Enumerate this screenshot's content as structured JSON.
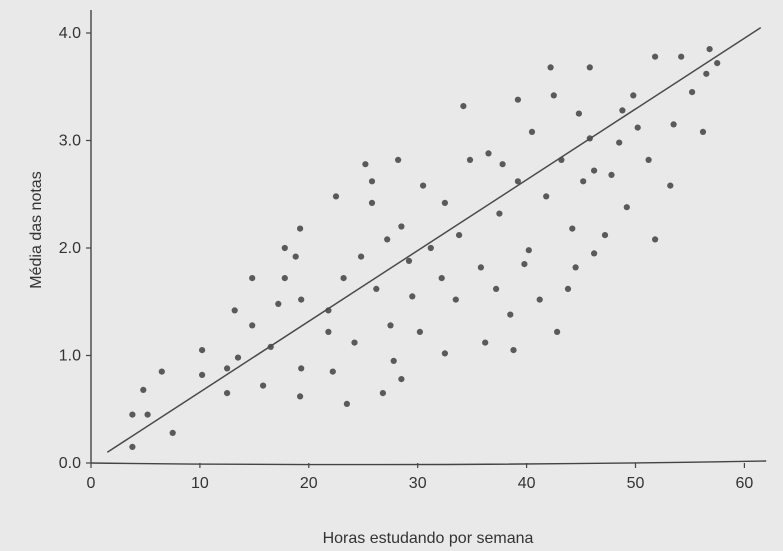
{
  "chart_data": {
    "type": "scatter",
    "xlabel": "Horas estudando por semana",
    "ylabel": "Média das notas",
    "xlim": [
      0,
      62
    ],
    "ylim": [
      0,
      4.25
    ],
    "xticks": [
      "0",
      "10",
      "20",
      "30",
      "40",
      "50",
      "60"
    ],
    "yticks": [
      "0.0",
      "1.0",
      "2.0",
      "3.0",
      "4.0"
    ],
    "grid": false,
    "colors": {
      "points": "#5a5a5a",
      "line": "#4a4a4a",
      "axis": "#444444",
      "background": "#e9e9e9"
    },
    "points": [
      [
        3.8,
        0.15
      ],
      [
        3.8,
        0.45
      ],
      [
        4.8,
        0.68
      ],
      [
        5.2,
        0.45
      ],
      [
        6.5,
        0.85
      ],
      [
        7.5,
        0.28
      ],
      [
        10.2,
        1.05
      ],
      [
        10.2,
        0.82
      ],
      [
        12.5,
        0.88
      ],
      [
        12.5,
        0.65
      ],
      [
        13.2,
        1.42
      ],
      [
        13.5,
        0.98
      ],
      [
        14.8,
        1.72
      ],
      [
        14.8,
        1.28
      ],
      [
        15.8,
        0.72
      ],
      [
        16.5,
        1.08
      ],
      [
        17.2,
        1.48
      ],
      [
        17.8,
        2.0
      ],
      [
        17.8,
        1.72
      ],
      [
        18.8,
        1.92
      ],
      [
        19.2,
        2.18
      ],
      [
        19.3,
        1.52
      ],
      [
        19.3,
        0.88
      ],
      [
        19.2,
        0.62
      ],
      [
        21.8,
        1.42
      ],
      [
        21.8,
        1.22
      ],
      [
        22.2,
        0.85
      ],
      [
        22.5,
        2.48
      ],
      [
        23.2,
        1.72
      ],
      [
        23.5,
        0.55
      ],
      [
        24.2,
        1.12
      ],
      [
        24.8,
        1.92
      ],
      [
        25.2,
        2.78
      ],
      [
        25.8,
        2.62
      ],
      [
        25.8,
        2.42
      ],
      [
        26.8,
        0.65
      ],
      [
        26.2,
        1.62
      ],
      [
        27.2,
        2.08
      ],
      [
        27.5,
        1.28
      ],
      [
        27.8,
        0.95
      ],
      [
        28.5,
        0.78
      ],
      [
        28.2,
        2.82
      ],
      [
        28.5,
        2.2
      ],
      [
        29.2,
        1.88
      ],
      [
        29.5,
        1.55
      ],
      [
        30.2,
        1.22
      ],
      [
        30.5,
        2.58
      ],
      [
        31.2,
        2.0
      ],
      [
        32.2,
        1.72
      ],
      [
        32.5,
        1.02
      ],
      [
        32.5,
        2.42
      ],
      [
        33.5,
        1.52
      ],
      [
        33.8,
        2.12
      ],
      [
        34.2,
        3.32
      ],
      [
        34.8,
        2.82
      ],
      [
        35.8,
        1.82
      ],
      [
        36.2,
        1.12
      ],
      [
        36.5,
        2.88
      ],
      [
        37.2,
        1.62
      ],
      [
        37.5,
        2.32
      ],
      [
        37.8,
        2.78
      ],
      [
        38.5,
        1.38
      ],
      [
        38.8,
        1.05
      ],
      [
        39.2,
        2.62
      ],
      [
        39.2,
        3.38
      ],
      [
        39.8,
        1.85
      ],
      [
        40.2,
        1.98
      ],
      [
        40.5,
        3.08
      ],
      [
        41.2,
        1.52
      ],
      [
        41.8,
        2.48
      ],
      [
        42.2,
        3.68
      ],
      [
        42.5,
        3.42
      ],
      [
        42.8,
        1.22
      ],
      [
        43.2,
        2.82
      ],
      [
        43.8,
        1.62
      ],
      [
        44.2,
        2.18
      ],
      [
        44.5,
        1.82
      ],
      [
        44.8,
        3.25
      ],
      [
        45.2,
        2.62
      ],
      [
        45.8,
        3.02
      ],
      [
        45.8,
        3.68
      ],
      [
        46.2,
        1.95
      ],
      [
        46.2,
        2.72
      ],
      [
        47.2,
        2.12
      ],
      [
        47.8,
        2.68
      ],
      [
        48.5,
        2.98
      ],
      [
        48.8,
        3.28
      ],
      [
        49.2,
        2.38
      ],
      [
        49.8,
        3.42
      ],
      [
        50.2,
        3.12
      ],
      [
        51.2,
        2.82
      ],
      [
        51.8,
        3.78
      ],
      [
        51.8,
        2.08
      ],
      [
        53.2,
        2.58
      ],
      [
        53.5,
        3.15
      ],
      [
        54.2,
        3.78
      ],
      [
        55.2,
        3.45
      ],
      [
        56.2,
        3.08
      ],
      [
        56.5,
        3.62
      ],
      [
        56.8,
        3.85
      ],
      [
        57.5,
        3.72
      ]
    ],
    "regression_line": {
      "x": [
        1.5,
        61.5
      ],
      "y": [
        0.1,
        4.05
      ]
    }
  }
}
